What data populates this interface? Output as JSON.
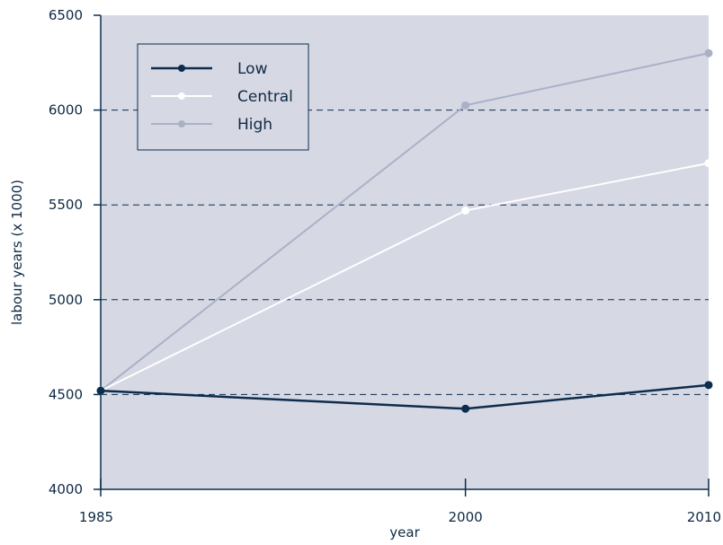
{
  "chart_data": {
    "type": "line",
    "x": [
      1985,
      2000,
      2010
    ],
    "x_ticks": [
      "1985",
      "2000",
      "2010"
    ],
    "y_ticks": [
      "4000",
      "4500",
      "5000",
      "5500",
      "6000",
      "6500"
    ],
    "ylim": [
      4000,
      6500
    ],
    "xlabel": "year",
    "ylabel": "labour years (x 1000)",
    "grid": "horizontal dashed at each y tick",
    "legend_position": "top-left",
    "series": [
      {
        "name": "Low",
        "values": [
          4520,
          4425,
          4550
        ],
        "color": "#0d2d4d"
      },
      {
        "name": "Central",
        "values": [
          4520,
          5470,
          5720
        ],
        "color": "#ffffff"
      },
      {
        "name": "High",
        "values": [
          4520,
          6025,
          6300
        ],
        "color": "#aab1c7"
      }
    ],
    "colors": {
      "plot_background": "#d6d8e4",
      "axis": "#0d2d4d",
      "grid": "#0d2d4d"
    }
  }
}
